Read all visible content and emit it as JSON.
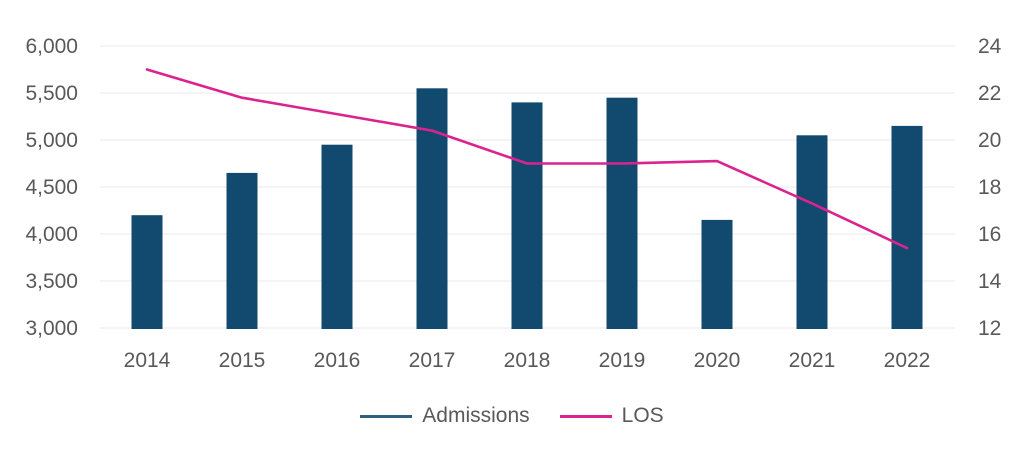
{
  "chart_data": {
    "type": "bar",
    "subtype": "combo-bar-line-dual-axis",
    "categories": [
      "2014",
      "2015",
      "2016",
      "2017",
      "2018",
      "2019",
      "2020",
      "2021",
      "2022"
    ],
    "series": [
      {
        "name": "Admissions",
        "type": "bar",
        "axis": "left",
        "color": "#114A6E",
        "legend_color": "#2F617C",
        "values": [
          4200,
          4650,
          4950,
          5550,
          5400,
          5450,
          4150,
          5050,
          5150
        ]
      },
      {
        "name": "LOS",
        "type": "line",
        "axis": "right",
        "color": "#DB2390",
        "legend_color": "#DB2390",
        "values": [
          23.0,
          21.8,
          21.1,
          20.4,
          19.0,
          19.0,
          19.1,
          17.3,
          15.4
        ]
      }
    ],
    "left_axis": {
      "min": 3000,
      "max": 6000,
      "step": 500,
      "tick_labels": [
        "3,000",
        "3,500",
        "4,000",
        "4,500",
        "5,000",
        "5,500",
        "6,000"
      ]
    },
    "right_axis": {
      "min": 12,
      "max": 24,
      "step": 2,
      "tick_labels": [
        "12",
        "14",
        "16",
        "18",
        "20",
        "22",
        "24"
      ]
    },
    "grid": true,
    "legend_position": "bottom",
    "text_color": "#595959",
    "gridline_color": "#E9E9E9"
  }
}
